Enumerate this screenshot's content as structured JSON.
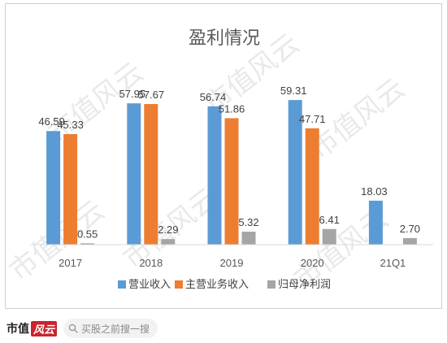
{
  "chart_data": {
    "type": "bar",
    "title": "盈利情况",
    "categories": [
      "2017",
      "2018",
      "2019",
      "2020",
      "21Q1"
    ],
    "series": [
      {
        "name": "营业收入",
        "color": "#5b9bd5",
        "values": [
          46.59,
          57.95,
          56.74,
          59.31,
          18.03
        ],
        "labels": [
          "46.59",
          "57.95",
          "56.74",
          "59.31",
          "18.03"
        ]
      },
      {
        "name": "主营业务收入",
        "color": "#ed7d31",
        "values": [
          45.33,
          57.67,
          51.86,
          47.71,
          null
        ],
        "labels": [
          "45.33",
          "57.67",
          "51.86",
          "47.71",
          ""
        ]
      },
      {
        "name": "归母净利润",
        "color": "#a5a5a5",
        "values": [
          0.55,
          2.29,
          5.32,
          6.41,
          2.7
        ],
        "labels": [
          "0.55",
          "2.29",
          "5.32",
          "6.41",
          "2.70"
        ]
      }
    ],
    "ylim": [
      0,
      70
    ],
    "grid": false,
    "legend_position": "bottom",
    "xlabel": "",
    "ylabel": ""
  },
  "watermark": {
    "text": "市值风云"
  },
  "footer": {
    "brand_text": "市值",
    "brand_mark": "风云",
    "search_placeholder": "买股之前搜一搜"
  }
}
